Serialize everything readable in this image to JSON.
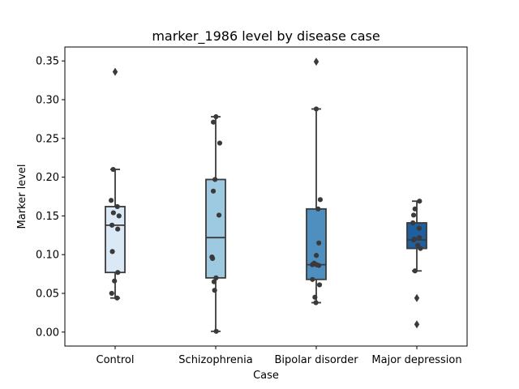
{
  "chart_data": {
    "type": "box",
    "title": "marker_1986 level by disease case",
    "xlabel": "Case",
    "ylabel": "Marker level",
    "categories": [
      "Control",
      "Schizophrenia",
      "Bipolar disorder",
      "Major depression"
    ],
    "ylim": [
      -0.018,
      0.368
    ],
    "yticks": [
      0.0,
      0.05,
      0.1,
      0.15,
      0.2,
      0.25,
      0.3,
      0.35
    ],
    "ytick_labels": [
      "0.00",
      "0.05",
      "0.10",
      "0.15",
      "0.20",
      "0.25",
      "0.30",
      "0.35"
    ],
    "grid": false,
    "boxes": [
      {
        "category": "Control",
        "color": "#dbe9f6",
        "q1": 0.077,
        "median": 0.138,
        "q3": 0.162,
        "whisker_low": 0.044,
        "whisker_high": 0.21,
        "outliers": [
          0.336
        ],
        "points": [
          0.044,
          0.05,
          0.066,
          0.077,
          0.104,
          0.133,
          0.138,
          0.15,
          0.154,
          0.162,
          0.17,
          0.21
        ]
      },
      {
        "category": "Schizophrenia",
        "color": "#9ecae1",
        "q1": 0.07,
        "median": 0.122,
        "q3": 0.197,
        "whisker_low": 0.001,
        "whisker_high": 0.278,
        "outliers": [],
        "points": [
          0.001,
          0.054,
          0.065,
          0.07,
          0.095,
          0.097,
          0.151,
          0.182,
          0.197,
          0.244,
          0.271,
          0.278
        ]
      },
      {
        "category": "Bipolar disorder",
        "color": "#4f8fc0",
        "q1": 0.068,
        "median": 0.087,
        "q3": 0.159,
        "whisker_low": 0.038,
        "whisker_high": 0.288,
        "outliers": [
          0.349
        ],
        "points": [
          0.038,
          0.045,
          0.061,
          0.068,
          0.086,
          0.087,
          0.087,
          0.089,
          0.099,
          0.115,
          0.159,
          0.171,
          0.288
        ]
      },
      {
        "category": "Major depression",
        "color": "#1f5f9e",
        "q1": 0.108,
        "median": 0.119,
        "q3": 0.141,
        "whisker_low": 0.079,
        "whisker_high": 0.169,
        "outliers": [
          0.044,
          0.01
        ],
        "points": [
          0.079,
          0.108,
          0.112,
          0.119,
          0.12,
          0.122,
          0.134,
          0.141,
          0.151,
          0.159,
          0.169
        ]
      }
    ]
  }
}
